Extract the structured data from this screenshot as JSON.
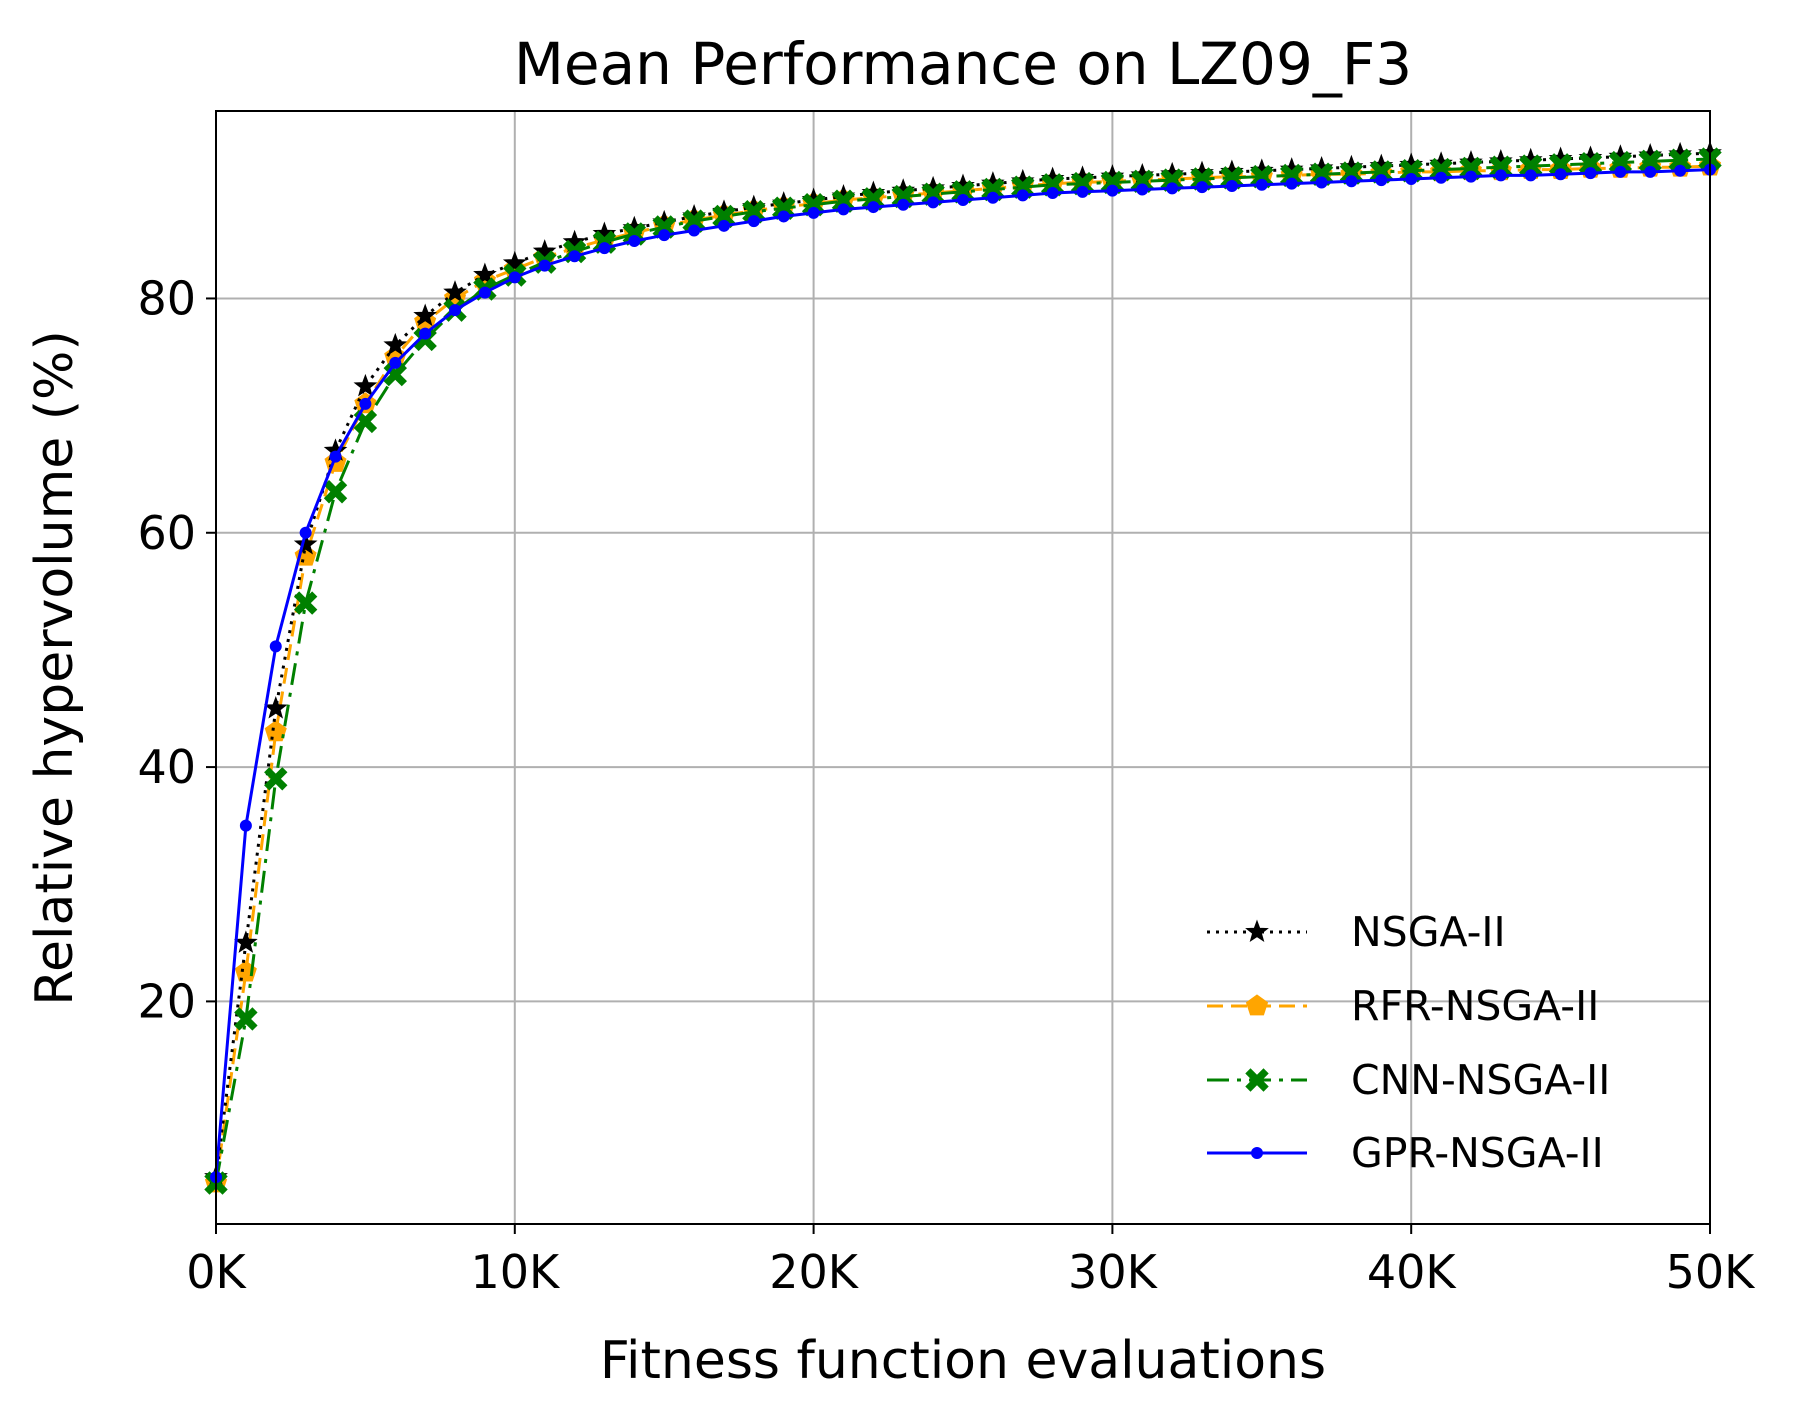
{
  "chart_data": {
    "type": "line",
    "title": "Mean Performance on LZ09_F3",
    "xlabel": "Fitness function evaluations",
    "ylabel": "Relative hypervolume (%)",
    "xlim": [
      0,
      50000
    ],
    "ylim": [
      1,
      96
    ],
    "xticks": [
      0,
      10000,
      20000,
      30000,
      40000,
      50000
    ],
    "xtick_labels": [
      "0K",
      "10K",
      "20K",
      "30K",
      "40K",
      "50K"
    ],
    "yticks": [
      20,
      40,
      60,
      80
    ],
    "ytick_labels": [
      "20",
      "40",
      "60",
      "80"
    ],
    "grid": true,
    "legend_position": "lower-right",
    "x_step": 1000,
    "series": [
      {
        "name": "NSGA-II",
        "color": "#000000",
        "linestyle": "dotted",
        "marker": "star",
        "values": [
          5,
          25,
          45,
          59,
          67,
          72.5,
          76,
          78.5,
          80.5,
          82,
          83,
          84,
          84.8,
          85.5,
          86,
          86.5,
          87,
          87.4,
          87.8,
          88.1,
          88.4,
          88.7,
          89,
          89.2,
          89.4,
          89.6,
          89.8,
          90,
          90.2,
          90.3,
          90.4,
          90.5,
          90.6,
          90.7,
          90.8,
          90.9,
          91,
          91.1,
          91.2,
          91.3,
          91.4,
          91.5,
          91.6,
          91.7,
          91.8,
          91.9,
          92,
          92.1,
          92.2,
          92.3,
          92.4
        ]
      },
      {
        "name": "RFR-NSGA-II",
        "color": "#FFA500",
        "linestyle": "dashed",
        "marker": "pentagon",
        "values": [
          4.5,
          22.5,
          43,
          58,
          66,
          71,
          75,
          78,
          80,
          81.5,
          82.5,
          83.5,
          84.3,
          85,
          85.6,
          86.2,
          86.7,
          87.1,
          87.5,
          87.8,
          88.1,
          88.4,
          88.6,
          88.8,
          89,
          89.2,
          89.4,
          89.6,
          89.8,
          89.9,
          90,
          90.1,
          90.2,
          90.3,
          90.4,
          90.4,
          90.5,
          90.6,
          90.6,
          90.7,
          90.8,
          90.8,
          90.9,
          90.9,
          91,
          91,
          91.1,
          91.1,
          91.2,
          91.2,
          91.3
        ]
      },
      {
        "name": "CNN-NSGA-II",
        "color": "#008000",
        "linestyle": "dashdot",
        "marker": "x-filled",
        "values": [
          4.5,
          18.5,
          39,
          54,
          63.5,
          69.5,
          73.5,
          76.5,
          79,
          80.8,
          82,
          83.1,
          84,
          84.8,
          85.5,
          86.1,
          86.6,
          87,
          87.4,
          87.7,
          88,
          88.3,
          88.5,
          88.7,
          88.9,
          89.1,
          89.3,
          89.5,
          89.7,
          89.8,
          89.9,
          90,
          90.1,
          90.2,
          90.3,
          90.4,
          90.5,
          90.6,
          90.7,
          90.8,
          90.9,
          91,
          91.1,
          91.2,
          91.3,
          91.4,
          91.5,
          91.6,
          91.7,
          91.8,
          91.9
        ]
      },
      {
        "name": "GPR-NSGA-II",
        "color": "#0000FF",
        "linestyle": "solid",
        "marker": "dot",
        "values": [
          5,
          35,
          50.3,
          60,
          66.5,
          71,
          74.5,
          77,
          79,
          80.5,
          81.8,
          82.8,
          83.6,
          84.3,
          84.9,
          85.4,
          85.8,
          86.2,
          86.6,
          87,
          87.3,
          87.6,
          87.8,
          88,
          88.2,
          88.4,
          88.6,
          88.8,
          89,
          89.1,
          89.2,
          89.3,
          89.4,
          89.5,
          89.6,
          89.7,
          89.8,
          89.9,
          90,
          90.1,
          90.2,
          90.3,
          90.4,
          90.5,
          90.5,
          90.6,
          90.7,
          90.8,
          90.8,
          90.9,
          91
        ]
      }
    ]
  }
}
